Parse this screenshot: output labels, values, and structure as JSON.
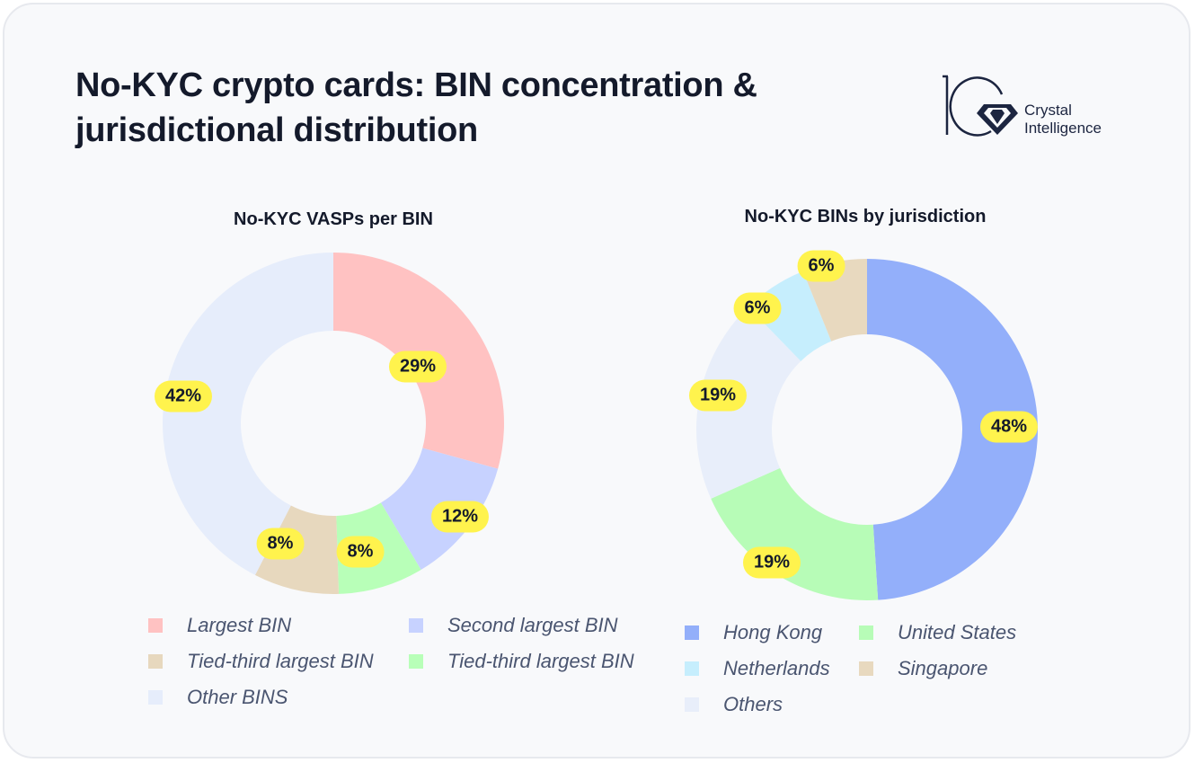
{
  "title_line1": "No-KYC crypto cards: BIN concentration &",
  "title_line2": "jurisdictional distribution",
  "logo": {
    "line1": "Crystal",
    "line2": "Intelligence"
  },
  "pill_color": "#FFF34D",
  "chart_data": [
    {
      "type": "pie",
      "donut": true,
      "title": "No-KYC VASPs per BIN",
      "legend_position": "bottom",
      "slices": [
        {
          "name": "Largest BIN",
          "value": 29,
          "label": "29%",
          "color": "#FFC2C2"
        },
        {
          "name": "Second largest BIN",
          "value": 12,
          "label": "12%",
          "color": "#C7D2FF"
        },
        {
          "name": "Tied-third largest BIN",
          "value": 8,
          "label": "8%",
          "color": "#B8FFB8"
        },
        {
          "name": "Tied-third largest BIN",
          "value": 8,
          "label": "8%",
          "color": "#E7D8BE"
        },
        {
          "name": "Other BINS",
          "value": 42,
          "label": "42%",
          "color": "#E6EDFB"
        }
      ]
    },
    {
      "type": "pie",
      "donut": true,
      "title": "No-KYC BINs by jurisdiction",
      "legend_position": "bottom",
      "slices": [
        {
          "name": "Hong Kong",
          "value": 48,
          "label": "48%",
          "color": "#93AFFA"
        },
        {
          "name": "United States",
          "value": 19,
          "label": "19%",
          "color": "#B7FCB7"
        },
        {
          "name": "Others",
          "value": 19,
          "label": "19%",
          "color": "#E8EEFA"
        },
        {
          "name": "Netherlands",
          "value": 6,
          "label": "6%",
          "color": "#C6EEFD"
        },
        {
          "name": "Singapore",
          "value": 6,
          "label": "6%",
          "color": "#E8D9BF"
        }
      ]
    }
  ]
}
